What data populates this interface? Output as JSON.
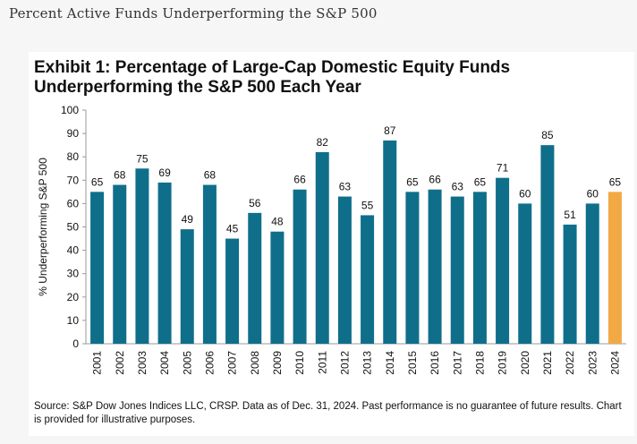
{
  "page": {
    "heading": "Percent Active Funds Underperforming the S&P 500"
  },
  "chart": {
    "title": "Exhibit 1: Percentage of Large-Cap Domestic Equity Funds Underperforming the S&P 500 Each Year",
    "source": "Source: S&P Dow Jones Indices LLC, CRSP.  Data as of Dec. 31, 2024.  Past performance is no guarantee of future results.  Chart is provided for illustrative purposes."
  },
  "chart_data": {
    "type": "bar",
    "title": "Exhibit 1: Percentage of Large-Cap Domestic Equity Funds Underperforming the S&P 500 Each Year",
    "xlabel": "",
    "ylabel": "% Underperforming S&P 500",
    "ylim": [
      0,
      100
    ],
    "yticks": [
      0,
      10,
      20,
      30,
      40,
      50,
      60,
      70,
      80,
      90,
      100
    ],
    "grid": false,
    "categories": [
      "2001",
      "2002",
      "2003",
      "2004",
      "2005",
      "2006",
      "2007",
      "2008",
      "2009",
      "2010",
      "2011",
      "2012",
      "2013",
      "2014",
      "2015",
      "2016",
      "2017",
      "2018",
      "2019",
      "2020",
      "2021",
      "2022",
      "2023",
      "2024"
    ],
    "values": [
      65,
      68,
      75,
      69,
      49,
      68,
      45,
      56,
      48,
      66,
      82,
      63,
      55,
      87,
      65,
      66,
      63,
      65,
      71,
      60,
      85,
      51,
      60,
      65
    ],
    "colors": {
      "default": "#0f6f8a",
      "highlight": "#f2a945",
      "highlight_category": "2024"
    }
  }
}
